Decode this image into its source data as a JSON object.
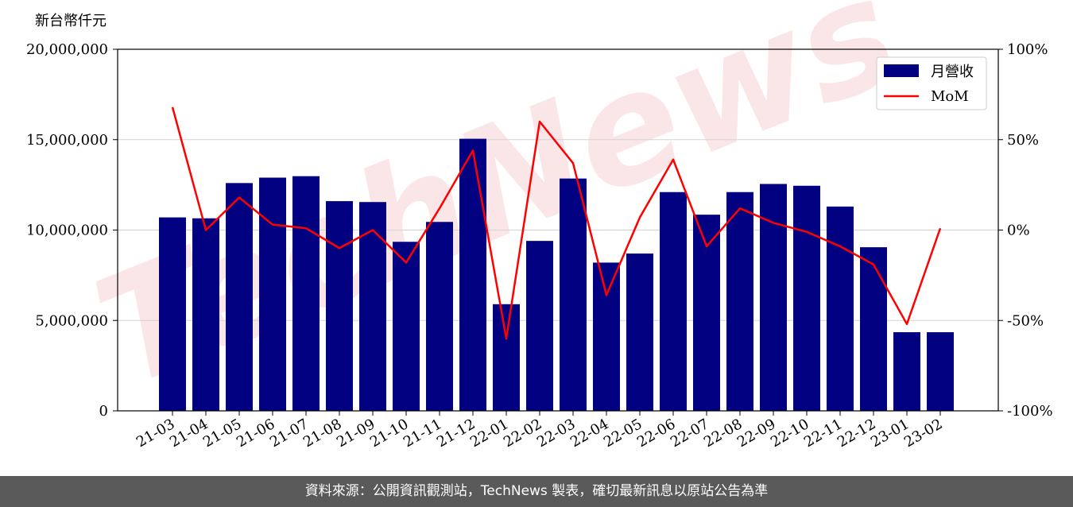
{
  "unit_label": "新台幣仟元",
  "footer_text": "資料來源：公開資訊觀測站，TechNews 製表，確切最新訊息以原站公告為準",
  "watermark": "TechNews",
  "colors": {
    "bar": "#000080",
    "line": "#ff0000",
    "grid": "#d3d3d3",
    "footer_bg": "#5a5a5a",
    "watermark": "#f4c8c8"
  },
  "chart_data": {
    "type": "bar",
    "categories": [
      "21-03",
      "21-04",
      "21-05",
      "21-06",
      "21-07",
      "21-08",
      "21-09",
      "21-10",
      "21-11",
      "21-12",
      "22-01",
      "22-02",
      "22-03",
      "22-04",
      "22-05",
      "22-06",
      "22-07",
      "22-08",
      "22-09",
      "22-10",
      "22-11",
      "22-12",
      "23-01",
      "23-02"
    ],
    "series": [
      {
        "name": "月營收",
        "type": "bar",
        "axis": "left",
        "values": [
          10700000,
          10650000,
          12600000,
          12900000,
          12980000,
          11600000,
          11550000,
          9350000,
          10450000,
          15050000,
          5900000,
          9400000,
          12850000,
          8200000,
          8700000,
          12100000,
          10850000,
          12100000,
          12550000,
          12450000,
          11300000,
          9050000,
          4350000,
          4350000
        ]
      },
      {
        "name": "MoM",
        "type": "line",
        "axis": "right",
        "values": [
          68,
          0,
          18,
          3,
          1,
          -10,
          0,
          -18,
          12,
          44,
          -60,
          60,
          37,
          -36,
          7,
          39,
          -9,
          12,
          4,
          -1,
          -9,
          -19,
          -52,
          1
        ]
      }
    ],
    "y_left": {
      "min": 0,
      "max": 20000000,
      "ticks": [
        0,
        5000000,
        10000000,
        15000000,
        20000000
      ],
      "tick_labels": [
        "0",
        "5,000,000",
        "10,000,000",
        "15,000,000",
        "20,000,000"
      ]
    },
    "y_right": {
      "min": -100,
      "max": 100,
      "ticks": [
        -100,
        -50,
        0,
        50,
        100
      ],
      "tick_labels": [
        "-100%",
        "-50%",
        "0%",
        "50%",
        "100%"
      ]
    },
    "grid": true,
    "legend_position": "top-right"
  }
}
